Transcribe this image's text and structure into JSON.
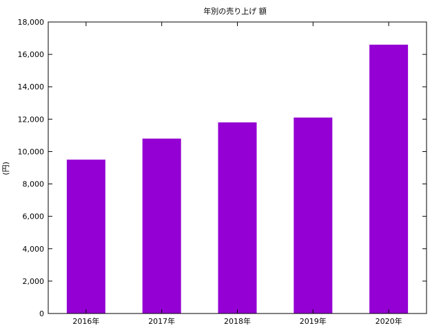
{
  "chart_data": {
    "type": "bar",
    "title": "年別の売り上げ 額",
    "xlabel": "",
    "ylabel": "(円)",
    "categories": [
      "2016年",
      "2017年",
      "2018年",
      "2019年",
      "2020年"
    ],
    "values": [
      9500,
      10800,
      11800,
      12100,
      16600
    ],
    "ylim": [
      0,
      18000
    ],
    "yticks": [
      0,
      2000,
      4000,
      6000,
      8000,
      10000,
      12000,
      14000,
      16000,
      18000
    ],
    "ytick_labels": [
      "0",
      "2,000",
      "4,000",
      "6,000",
      "8,000",
      "10,000",
      "12,000",
      "14,000",
      "16,000",
      "18,000"
    ],
    "bar_color": "#9400d3",
    "grid": false,
    "legend": "none"
  }
}
